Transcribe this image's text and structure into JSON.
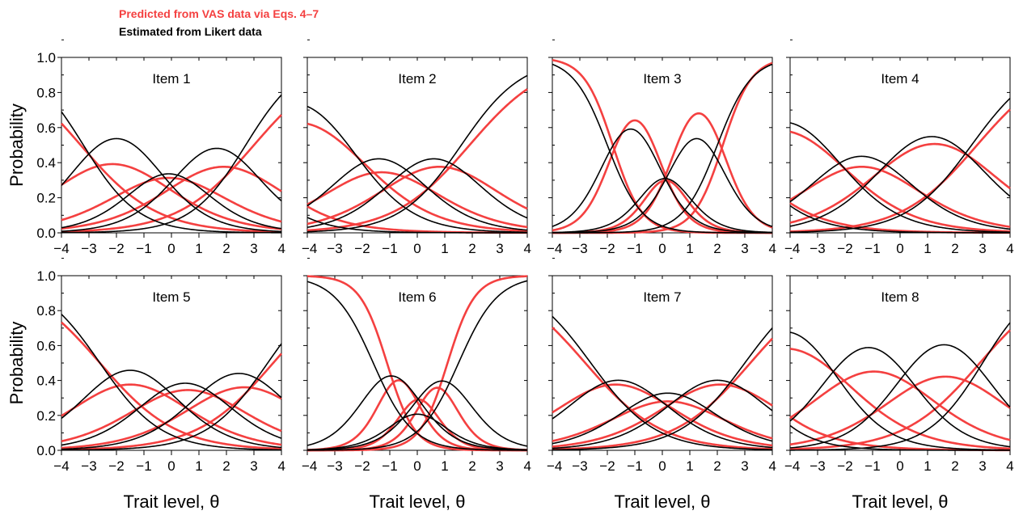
{
  "legend": {
    "vas": "Predicted from VAS data via Eqs. 4–7",
    "likert": "Estimated from Likert data"
  },
  "colors": {
    "vas": "#f44040",
    "likert": "#000000"
  },
  "axes": {
    "ylabel": "Probability",
    "xlabel": "Trait level, θ",
    "xlim": [
      -4,
      4
    ],
    "ylim": [
      0,
      1
    ],
    "xticks": [
      "−4",
      "−3",
      "−2",
      "−1",
      "0",
      "1",
      "2",
      "3",
      "4"
    ],
    "yticks": [
      "0.0",
      "0.2",
      "0.4",
      "0.6",
      "0.8",
      "1.0"
    ]
  },
  "chart_data": {
    "type": "line",
    "x_range": [
      -4,
      4
    ],
    "y_range": [
      0,
      1
    ],
    "model": "graded response category probability curves (5 categories per item)",
    "panels": [
      {
        "title": "Item 1",
        "series": [
          {
            "name": "Estimated from Likert data",
            "a": 1.0,
            "b": [
              -3.2,
              -0.8,
              0.6,
              2.7
            ]
          },
          {
            "name": "Predicted from VAS data via Eqs. 4–7",
            "a": 0.72,
            "b": [
              -3.3,
              -1.0,
              0.8,
              3.0
            ]
          }
        ]
      },
      {
        "title": "Item 2",
        "series": [
          {
            "name": "Estimated from Likert data",
            "a": 0.9,
            "b": [
              -6.6,
              -2.4,
              -0.4,
              1.6
            ]
          },
          {
            "name": "Predicted from VAS data via Eqs. 4–7",
            "a": 0.72,
            "b": [
              -6.4,
              -2.3,
              -0.3,
              1.9
            ]
          }
        ]
      },
      {
        "title": "Item 3",
        "series": [
          {
            "name": "Estimated from Likert data",
            "a": 1.6,
            "b": [
              -2.0,
              -0.3,
              0.5,
              2.0
            ]
          },
          {
            "name": "Predicted from VAS data via Eqs. 4–7",
            "a": 1.9,
            "b": [
              -1.8,
              -0.2,
              0.45,
              2.2
            ]
          }
        ]
      },
      {
        "title": "Item 4",
        "series": [
          {
            "name": "Estimated from Likert data",
            "a": 0.85,
            "b": [
              -6.0,
              -2.5,
              -0.3,
              2.6
            ]
          },
          {
            "name": "Predicted from VAS data via Eqs. 4–7",
            "a": 0.72,
            "b": [
              -6.2,
              -2.5,
              -0.3,
              2.8
            ]
          }
        ]
      },
      {
        "title": "Item 5",
        "series": [
          {
            "name": "Estimated from Likert data",
            "a": 0.9,
            "b": [
              -2.6,
              -0.4,
              1.4,
              3.5
            ]
          },
          {
            "name": "Predicted from VAS data via Eqs. 4–7",
            "a": 0.72,
            "b": [
              -2.6,
              -0.4,
              1.6,
              3.7
            ]
          }
        ]
      },
      {
        "title": "Item 6",
        "series": [
          {
            "name": "Estimated from Likert data",
            "a": 1.4,
            "b": [
              -1.6,
              -0.3,
              0.3,
              1.5
            ]
          },
          {
            "name": "Predicted from VAS data via Eqs. 4–7",
            "a": 2.0,
            "b": [
              -1.1,
              -0.25,
              0.35,
              1.1
            ]
          }
        ]
      },
      {
        "title": "Item 7",
        "series": [
          {
            "name": "Estimated from Likert data",
            "a": 0.85,
            "b": [
              -2.6,
              -0.6,
              1.0,
              3.0
            ]
          },
          {
            "name": "Predicted from VAS data via Eqs. 4–7",
            "a": 0.72,
            "b": [
              -2.8,
              -0.6,
              1.0,
              3.2
            ]
          }
        ]
      },
      {
        "title": "Item 8",
        "series": [
          {
            "name": "Estimated from Likert data",
            "a": 1.0,
            "b": [
              -5.8,
              -2.5,
              0.2,
              3.0
            ]
          },
          {
            "name": "Predicted from VAS data via Eqs. 4–7",
            "a": 0.72,
            "b": [
              -6.0,
              -2.3,
              0.4,
              2.9
            ]
          }
        ]
      }
    ]
  }
}
